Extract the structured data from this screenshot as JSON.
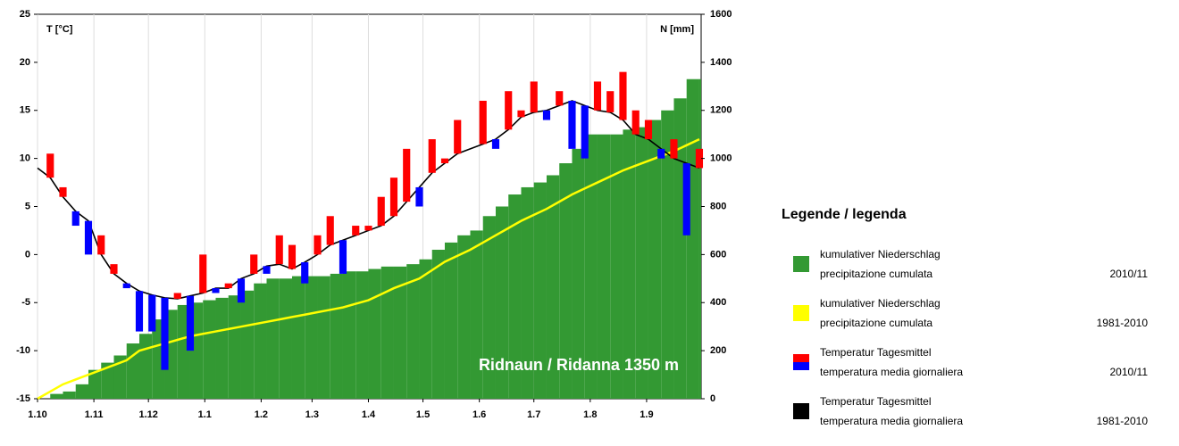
{
  "chart_data": {
    "type": "climate",
    "title": "Ridnaun / Ridanna 1350 m",
    "y_label": "T [°C]",
    "y2_label": "N [mm]",
    "x": [
      0,
      7,
      14,
      21,
      28,
      35,
      42,
      49,
      56,
      63,
      70,
      77,
      84,
      91,
      98,
      105,
      112,
      119,
      126,
      133,
      140,
      147,
      154,
      161,
      168,
      175,
      182,
      189,
      196,
      203,
      210,
      217,
      224,
      231,
      238,
      245,
      252,
      259,
      266,
      273,
      280,
      287,
      294,
      301,
      308,
      315,
      322,
      329,
      336,
      343,
      350,
      357,
      364
    ],
    "xlim": [
      0,
      365
    ],
    "xticks": [
      {
        "value": 0,
        "label": "1.10"
      },
      {
        "value": 31,
        "label": "1.11"
      },
      {
        "value": 61,
        "label": "1.12"
      },
      {
        "value": 92,
        "label": "1.1"
      },
      {
        "value": 123,
        "label": "1.2"
      },
      {
        "value": 151,
        "label": "1.3"
      },
      {
        "value": 182,
        "label": "1.4"
      },
      {
        "value": 212,
        "label": "1.5"
      },
      {
        "value": 243,
        "label": "1.6"
      },
      {
        "value": 273,
        "label": "1.7"
      },
      {
        "value": 304,
        "label": "1.8"
      },
      {
        "value": 335,
        "label": "1.9"
      }
    ],
    "ylim": [
      -15,
      25
    ],
    "yticks": [
      -15,
      -10,
      -5,
      0,
      5,
      10,
      15,
      20,
      25
    ],
    "y2lim": [
      0,
      1600
    ],
    "y2ticks": [
      0,
      200,
      400,
      600,
      800,
      1000,
      1200,
      1400,
      1600
    ],
    "grid": "x",
    "legend_title": "Legende / legenda",
    "series": [
      {
        "name": [
          "kumulativer Niederschlag",
          "precipitazione cumulata"
        ],
        "period": "2010/11",
        "kind": "step-area",
        "axis": "y2",
        "color": "#339933",
        "values": [
          0,
          20,
          30,
          60,
          120,
          150,
          180,
          230,
          270,
          330,
          370,
          390,
          400,
          410,
          420,
          430,
          450,
          480,
          500,
          500,
          510,
          510,
          510,
          520,
          530,
          530,
          540,
          550,
          550,
          560,
          580,
          620,
          650,
          680,
          700,
          760,
          800,
          850,
          880,
          900,
          930,
          980,
          1040,
          1100,
          1100,
          1100,
          1120,
          1130,
          1160,
          1200,
          1250,
          1330,
          1330
        ]
      },
      {
        "name": [
          "kumulativer Niederschlag",
          "precipitazione cumulata"
        ],
        "period": "1981-2010",
        "kind": "line",
        "axis": "y2",
        "color": "#ffff00",
        "values": [
          0,
          30,
          60,
          80,
          100,
          120,
          140,
          160,
          200,
          215,
          230,
          245,
          260,
          270,
          280,
          290,
          300,
          310,
          320,
          330,
          340,
          350,
          360,
          370,
          380,
          395,
          410,
          435,
          460,
          480,
          500,
          535,
          570,
          595,
          620,
          650,
          680,
          710,
          740,
          765,
          790,
          820,
          850,
          875,
          900,
          925,
          950,
          970,
          990,
          1010,
          1030,
          1055,
          1080
        ]
      },
      {
        "name": [
          "Temperatur Tagesmittel",
          "temperatura media giornaliera"
        ],
        "period": "2010/11",
        "kind": "deviation-bars",
        "color_above": "#ff0000",
        "color_below": "#0000ff",
        "values": [
          9,
          10.5,
          7,
          3,
          0,
          2,
          -1,
          -3.5,
          -8,
          -8,
          -12,
          -4,
          -10,
          0,
          -4,
          -3,
          -5,
          0,
          -2,
          2,
          1,
          -3,
          2,
          4,
          -2,
          3,
          3,
          6,
          8,
          11,
          5,
          12,
          10,
          14,
          11,
          16,
          11,
          17,
          15,
          18,
          14,
          17,
          11,
          10,
          18,
          17,
          19,
          15,
          14,
          10,
          12,
          2,
          11
        ]
      },
      {
        "name": [
          "Temperatur Tagesmittel",
          "temperatura media giornaliera"
        ],
        "period": "1981-2010",
        "kind": "line",
        "color": "#000000",
        "values": [
          9,
          8,
          6,
          4.5,
          3.5,
          0,
          -2,
          -3,
          -3.8,
          -4.2,
          -4.5,
          -4.6,
          -4.3,
          -4,
          -3.5,
          -3.5,
          -2.5,
          -2,
          -1.2,
          -1,
          -1.5,
          -0.8,
          0,
          1,
          1.5,
          2,
          2.5,
          3,
          4,
          5.5,
          7,
          8.5,
          9.5,
          10.5,
          11,
          11.5,
          12,
          13,
          14.3,
          14.8,
          15,
          15.5,
          16,
          15.5,
          15,
          14.8,
          14,
          12.5,
          12,
          11,
          10,
          9.5,
          9
        ]
      }
    ]
  }
}
